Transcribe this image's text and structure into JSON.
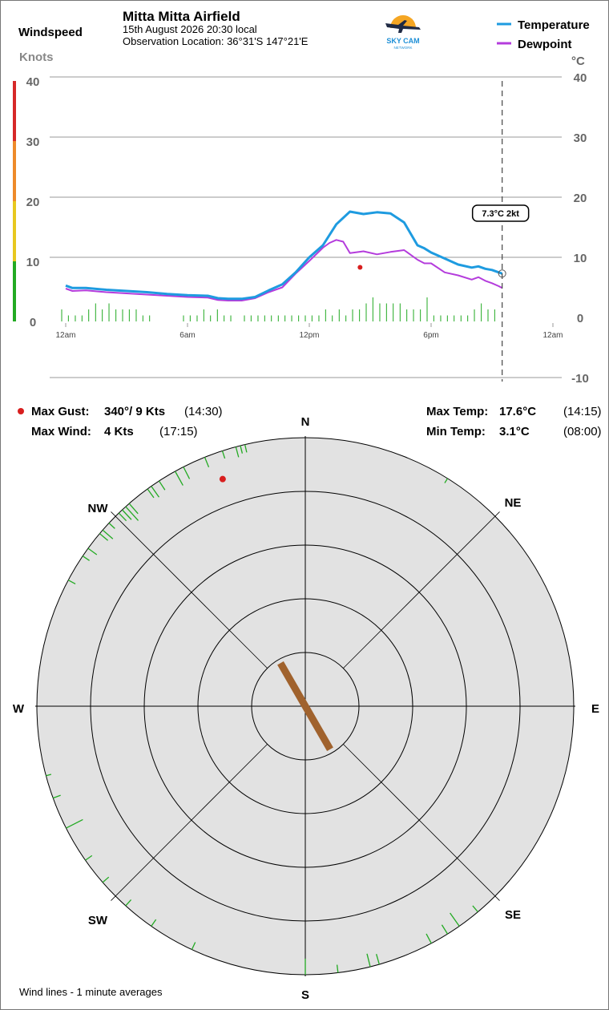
{
  "header": {
    "station": "Mitta Mitta Airfield",
    "datetime": "15th August 2026  20:30 local",
    "location": "Observation Location: 36°31'S 147°21'E",
    "windspeed_label": "Windspeed",
    "knots_label": "Knots",
    "celsius_label": "°C",
    "logo_text": "SKY CAM",
    "logo_subtext": "NETWORK"
  },
  "legend": {
    "temperature": "Temperature",
    "dewpoint": "Dewpoint"
  },
  "colors": {
    "temperature": "#1E9BE0",
    "dewpoint": "#B43CDC",
    "wind_bars": "#22AA22",
    "gust_marker": "#D81E1E",
    "scale_green": "#22AA22",
    "scale_yellow": "#E8C81E",
    "scale_orange": "#EE8A2A",
    "scale_red": "#D62828",
    "current_wind": "#A0622D",
    "rose_fill": "#E2E2E2"
  },
  "chart_data": {
    "type": "line",
    "x_unit": "hours since midnight",
    "x_ticks": [
      {
        "value": 0,
        "label": "12am"
      },
      {
        "value": 6,
        "label": "6am"
      },
      {
        "value": 12,
        "label": "12pm"
      },
      {
        "value": 18,
        "label": "6pm"
      },
      {
        "value": 24,
        "label": "12am"
      }
    ],
    "xlim": [
      0,
      24
    ],
    "left_axis": {
      "label": "Knots",
      "ticks": [
        0,
        10,
        20,
        30,
        40
      ],
      "range": [
        0,
        40
      ]
    },
    "right_axis": {
      "label": "°C",
      "ticks": [
        -10,
        0,
        10,
        20,
        30,
        40
      ],
      "range": [
        -10,
        40
      ]
    },
    "series": [
      {
        "name": "Temperature",
        "x": [
          0,
          0.33,
          1,
          2,
          3,
          4,
          5,
          6,
          7,
          7.5,
          8,
          8.67,
          9.33,
          10,
          10.67,
          11.33,
          12,
          12.67,
          13.33,
          14,
          14.67,
          15.33,
          16,
          16.67,
          17.33,
          17.67,
          18,
          18.67,
          19.33,
          20,
          20.33,
          20.67,
          21,
          21.33,
          21.5
        ],
        "values": [
          5.3,
          4.9,
          4.9,
          4.6,
          4.4,
          4.2,
          3.9,
          3.7,
          3.6,
          3.2,
          3.1,
          3.1,
          3.4,
          4.5,
          5.5,
          7.5,
          10.0,
          12.0,
          15.5,
          17.6,
          17.2,
          17.5,
          17.3,
          15.8,
          12.0,
          11.5,
          10.8,
          9.8,
          8.8,
          8.3,
          8.5,
          8.1,
          7.9,
          7.5,
          7.3
        ]
      },
      {
        "name": "Dewpoint",
        "x": [
          0,
          0.33,
          1,
          2,
          3,
          4,
          5,
          6,
          7,
          7.5,
          8,
          8.67,
          9.33,
          10,
          10.67,
          11.33,
          12,
          12.67,
          13,
          13.33,
          13.67,
          14,
          14.67,
          15.33,
          16,
          16.67,
          17.33,
          17.67,
          18,
          18.67,
          19.33,
          20,
          20.33,
          20.67,
          21,
          21.33,
          21.5
        ],
        "values": [
          4.8,
          4.4,
          4.5,
          4.2,
          4.0,
          3.8,
          3.6,
          3.4,
          3.3,
          2.9,
          2.8,
          2.8,
          3.2,
          4.2,
          5.0,
          7.3,
          9.4,
          11.6,
          12.4,
          12.9,
          12.6,
          10.7,
          11.0,
          10.5,
          10.9,
          11.2,
          9.6,
          9.0,
          9.0,
          7.5,
          7.0,
          6.3,
          6.7,
          6.1,
          5.7,
          5.2,
          4.9
        ]
      },
      {
        "name": "Wind",
        "unit": "kt",
        "x": [
          0,
          0.33,
          0.67,
          1,
          1.33,
          1.67,
          2,
          2.33,
          2.67,
          3,
          3.33,
          3.67,
          4,
          4.33,
          6,
          6.33,
          6.67,
          7,
          7.33,
          7.67,
          8,
          8.33,
          9,
          9.33,
          9.67,
          10,
          10.33,
          10.67,
          11,
          11.33,
          11.67,
          12,
          12.33,
          12.67,
          13,
          13.33,
          13.67,
          14,
          14.33,
          14.67,
          15,
          15.33,
          15.67,
          16,
          16.33,
          16.67,
          17,
          17.33,
          17.67,
          18,
          18.33,
          18.67,
          19,
          19.33,
          19.67,
          20,
          20.33,
          20.67,
          21,
          21.33
        ],
        "values": [
          2,
          1,
          1,
          1,
          2,
          3,
          2,
          3,
          2,
          2,
          2,
          2,
          1,
          1,
          1,
          1,
          1,
          2,
          1,
          2,
          1,
          1,
          1,
          1,
          1,
          1,
          1,
          1,
          1,
          1,
          1,
          1,
          1,
          1,
          2,
          1,
          2,
          1,
          2,
          2,
          3,
          4,
          3,
          3,
          3,
          3,
          2,
          2,
          2,
          4,
          1,
          1,
          1,
          1,
          1,
          1,
          2,
          3,
          2,
          2
        ]
      }
    ],
    "max_gust_marker": {
      "x": 14.5,
      "value": 9
    },
    "current": {
      "x": 21.5,
      "label": "7.3°C  2kt"
    },
    "wind_scale_bands": [
      {
        "from": 0,
        "to": 10,
        "color": "#22AA22"
      },
      {
        "from": 10,
        "to": 20,
        "color": "#E8C81E"
      },
      {
        "from": 20,
        "to": 30,
        "color": "#EE8A2A"
      },
      {
        "from": 30,
        "to": 40,
        "color": "#D62828"
      }
    ]
  },
  "stats": {
    "max_gust_label": "Max Gust:",
    "max_gust_value": "340°/ 9 Kts",
    "max_gust_time": "(14:30)",
    "max_wind_label": "Max Wind:",
    "max_wind_value": "4 Kts",
    "max_wind_time": "(17:15)",
    "max_temp_label": "Max Temp:",
    "max_temp_value": "17.6°C",
    "max_temp_time": "(14:15)",
    "min_temp_label": "Min Temp:",
    "min_temp_value": "3.1°C",
    "min_temp_time": "(08:00)"
  },
  "rose": {
    "directions": [
      "N",
      "NE",
      "E",
      "SE",
      "S",
      "SW",
      "W",
      "NW"
    ],
    "ring_max_kts": 10,
    "rings": 5,
    "gust": {
      "direction_deg": 340,
      "speed_kts": 9
    },
    "current_wind": {
      "direction_deg": 330,
      "speed_kts": 2
    },
    "wind_lines": [
      {
        "dir": 345,
        "len": 0.04
      },
      {
        "dir": 346,
        "len": 0.03
      },
      {
        "dir": 347,
        "len": 0.03
      },
      {
        "dir": 342,
        "len": 0.03
      },
      {
        "dir": 338,
        "len": 0.04
      },
      {
        "dir": 333,
        "len": 0.05
      },
      {
        "dir": 331,
        "len": 0.06
      },
      {
        "dir": 327,
        "len": 0.04
      },
      {
        "dir": 325,
        "len": 0.05
      },
      {
        "dir": 324,
        "len": 0.04
      },
      {
        "dir": 319,
        "len": 0.05
      },
      {
        "dir": 318,
        "len": 0.07
      },
      {
        "dir": 317,
        "len": 0.05
      },
      {
        "dir": 316,
        "len": 0.04
      },
      {
        "dir": 313,
        "len": 0.03
      },
      {
        "dir": 311,
        "len": 0.05
      },
      {
        "dir": 310,
        "len": 0.04
      },
      {
        "dir": 306,
        "len": 0.04
      },
      {
        "dir": 304,
        "len": 0.03
      },
      {
        "dir": 298,
        "len": 0.03
      },
      {
        "dir": 32,
        "len": 0.02
      },
      {
        "dir": 255,
        "len": 0.02
      },
      {
        "dir": 250,
        "len": 0.03
      },
      {
        "dir": 243,
        "len": 0.07
      },
      {
        "dir": 235,
        "len": 0.03
      },
      {
        "dir": 229,
        "len": 0.03
      },
      {
        "dir": 222,
        "len": 0.03
      },
      {
        "dir": 215,
        "len": 0.03
      },
      {
        "dir": 205,
        "len": 0.03
      },
      {
        "dir": 180,
        "len": 0.06
      },
      {
        "dir": 173,
        "len": 0.03
      },
      {
        "dir": 166,
        "len": 0.05
      },
      {
        "dir": 164,
        "len": 0.04
      },
      {
        "dir": 152,
        "len": 0.04
      },
      {
        "dir": 148,
        "len": 0.04
      },
      {
        "dir": 145,
        "len": 0.06
      },
      {
        "dir": 140,
        "len": 0.03
      }
    ],
    "footer_note": "Wind lines - 1 minute averages"
  }
}
